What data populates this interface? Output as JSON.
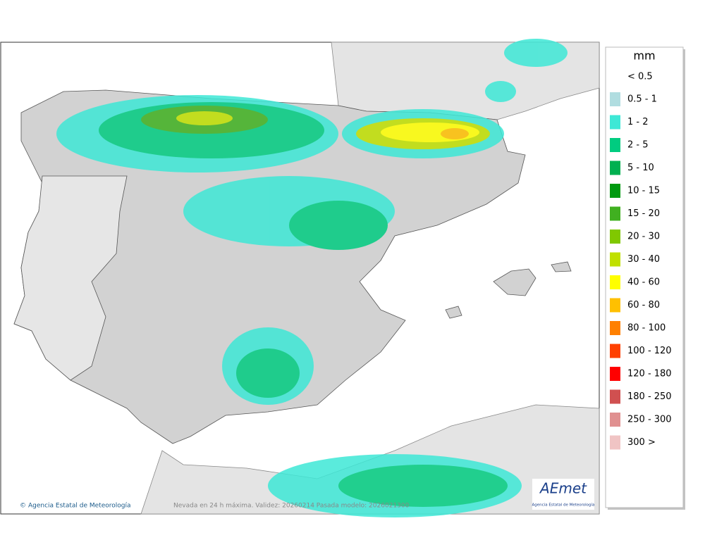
{
  "legend": {
    "title": "mm",
    "below_label": "< 0.5",
    "items": [
      {
        "label": "0.5 - 1",
        "color": "#b0dde0"
      },
      {
        "label": "1 - 2",
        "color": "#3ee8d6"
      },
      {
        "label": "2 - 5",
        "color": "#00cc80"
      },
      {
        "label": "5 - 10",
        "color": "#00b050"
      },
      {
        "label": "10 - 15",
        "color": "#009a10"
      },
      {
        "label": "15 - 20",
        "color": "#40b020"
      },
      {
        "label": "20 - 30",
        "color": "#80c800"
      },
      {
        "label": "30 - 40",
        "color": "#c0e000"
      },
      {
        "label": "40 - 60",
        "color": "#ffff00"
      },
      {
        "label": "60 - 80",
        "color": "#ffc000"
      },
      {
        "label": "80 - 100",
        "color": "#ff8000"
      },
      {
        "label": "100 - 120",
        "color": "#ff4000"
      },
      {
        "label": "120 - 180",
        "color": "#ff0000"
      },
      {
        "label": "180 - 250",
        "color": "#d05050"
      },
      {
        "label": "250 - 300",
        "color": "#e09090"
      },
      {
        "label": "300 >",
        "color": "#f0c4c4"
      }
    ]
  },
  "footer": {
    "credit": "Agencia Estatal de Meteorología",
    "caption": "Nevada en 24 h máxima. Validez: 20260214 Pasada modelo: 2026021300"
  },
  "logo": {
    "name": "AEmet",
    "subtitle": "Agencia Estatal de Meteorología"
  }
}
